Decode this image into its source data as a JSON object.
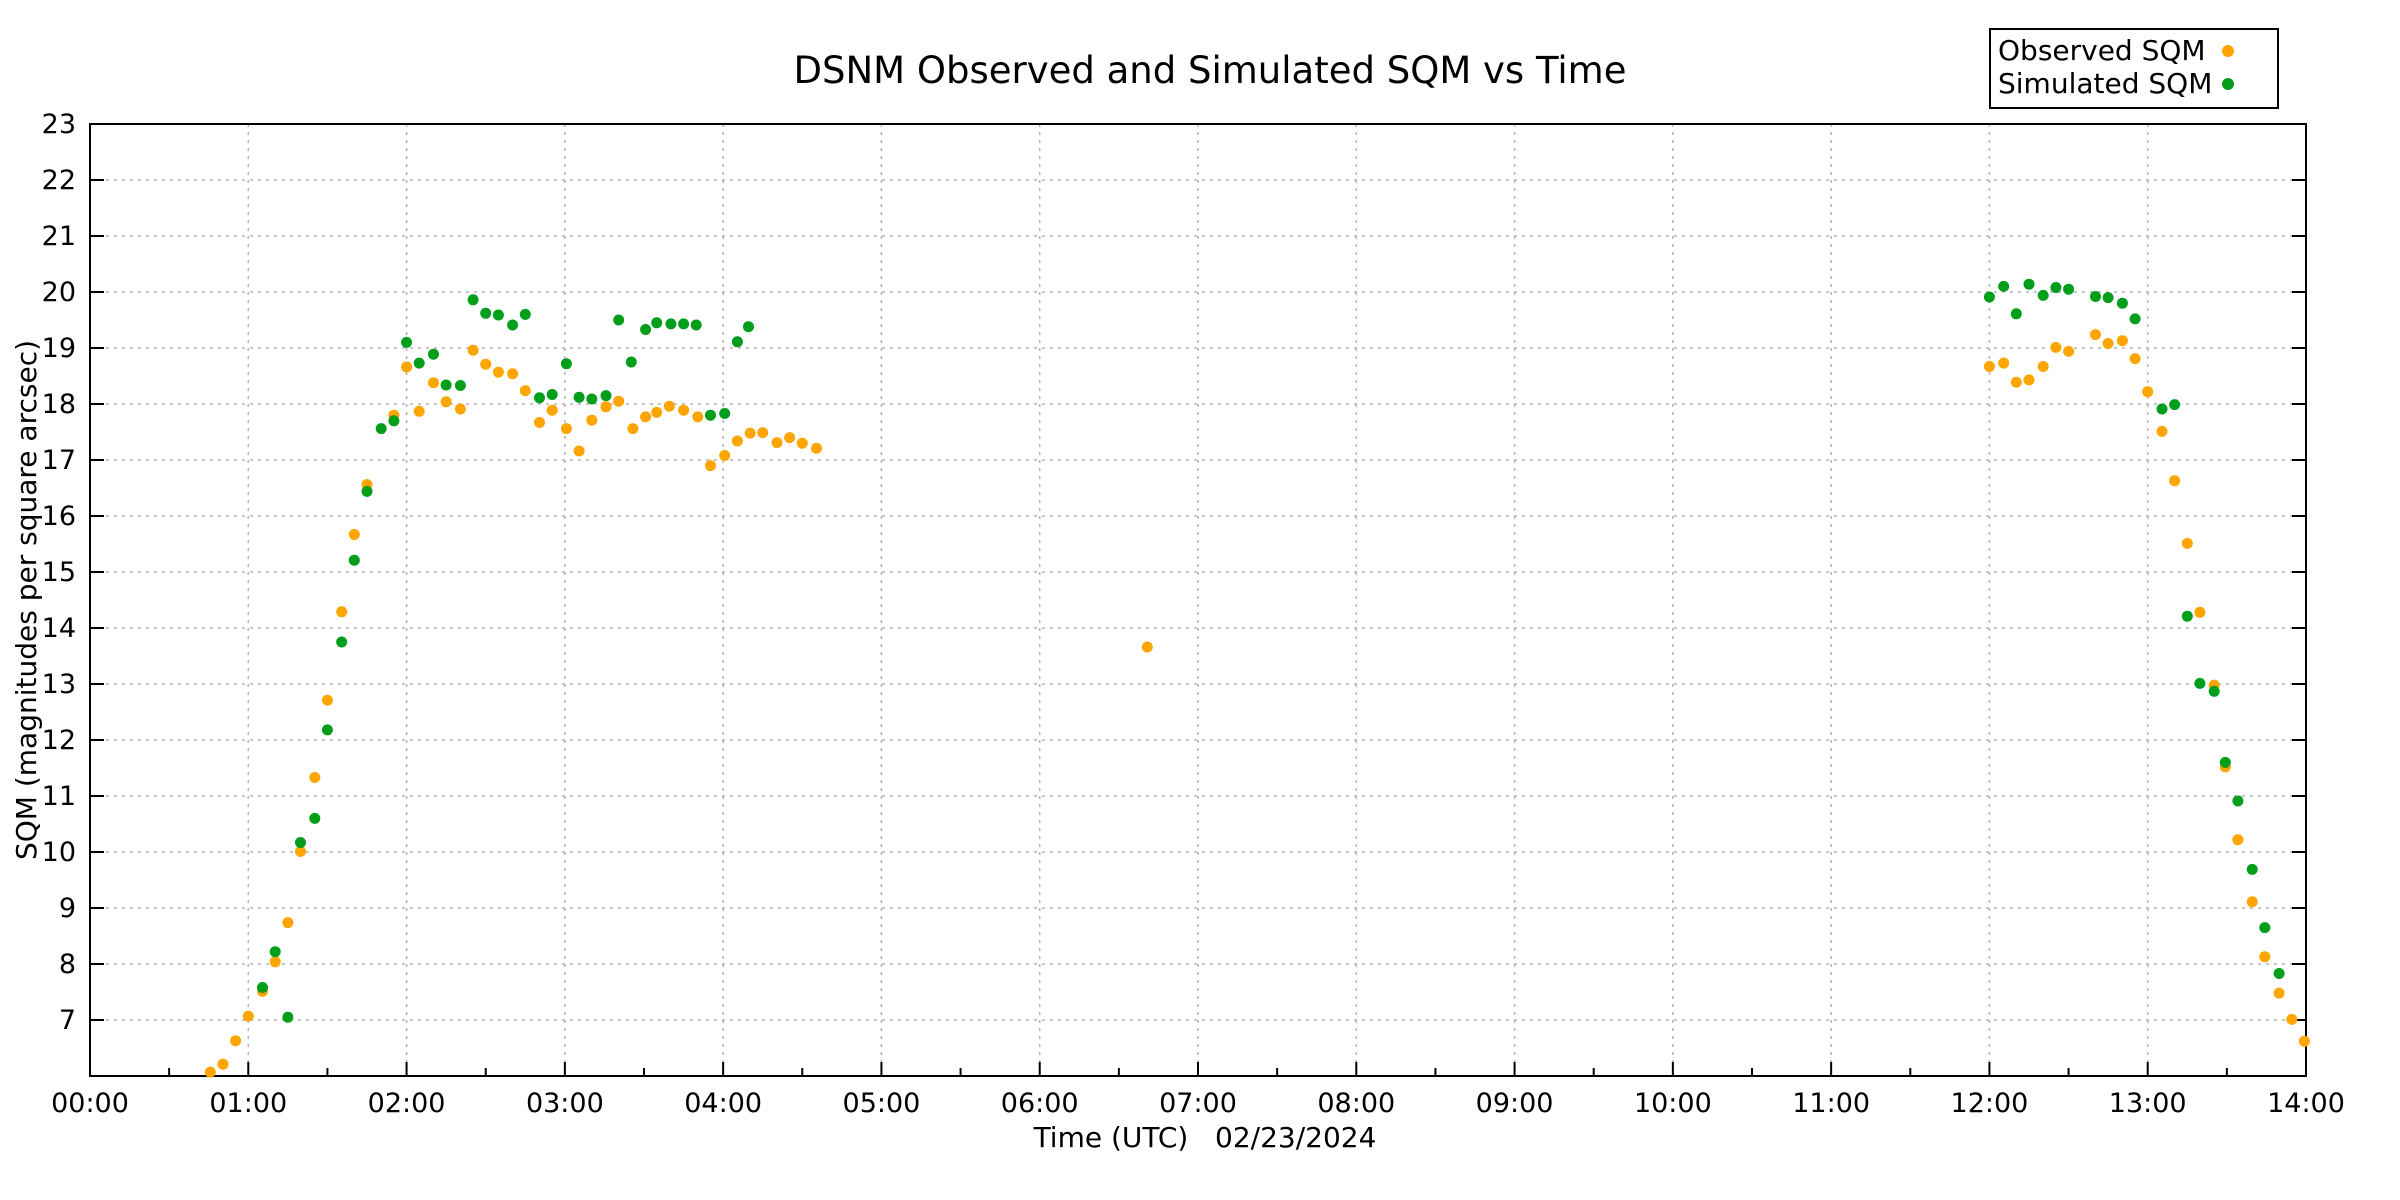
{
  "chart": {
    "accent_color": "#0d9e6e",
    "grid_color": "#b3b3b3",
    "border_color": "#000000"
  },
  "chart_data": {
    "type": "scatter",
    "title": "DSNM Observed and Simulated SQM vs Time",
    "xlabel": "Time (UTC)   02/23/2024",
    "ylabel": "SQM (magnitudes per square arcsec)",
    "x_date": "02/23/2024",
    "xlim_hours": [
      0,
      14
    ],
    "ylim": [
      6,
      23
    ],
    "grid": true,
    "legend_position": "top-right",
    "x_tick_labels": [
      "00:00",
      "01:00",
      "02:00",
      "03:00",
      "04:00",
      "05:00",
      "06:00",
      "07:00",
      "08:00",
      "09:00",
      "10:00",
      "11:00",
      "12:00",
      "13:00",
      "14:00"
    ],
    "y_ticks": [
      7,
      8,
      9,
      10,
      11,
      12,
      13,
      14,
      15,
      16,
      17,
      18,
      19,
      20,
      21,
      22,
      23
    ],
    "series": [
      {
        "name": "Observed SQM",
        "color": "#ffa500",
        "points": [
          [
            0.76,
            6.07
          ],
          [
            0.84,
            6.21
          ],
          [
            0.92,
            6.63
          ],
          [
            1.0,
            7.07
          ],
          [
            1.09,
            7.51
          ],
          [
            1.17,
            8.04
          ],
          [
            1.25,
            8.74
          ],
          [
            1.33,
            10.01
          ],
          [
            1.42,
            11.33
          ],
          [
            1.5,
            12.71
          ],
          [
            1.59,
            14.29
          ],
          [
            1.67,
            15.67
          ],
          [
            1.75,
            16.56
          ],
          [
            1.92,
            17.8
          ],
          [
            2.0,
            18.66
          ],
          [
            2.08,
            17.87
          ],
          [
            2.17,
            18.38
          ],
          [
            2.25,
            18.04
          ],
          [
            2.34,
            17.91
          ],
          [
            2.42,
            18.96
          ],
          [
            2.5,
            18.71
          ],
          [
            2.58,
            18.57
          ],
          [
            2.67,
            18.54
          ],
          [
            2.75,
            18.24
          ],
          [
            2.84,
            17.67
          ],
          [
            2.92,
            17.89
          ],
          [
            3.01,
            17.56
          ],
          [
            3.09,
            17.16
          ],
          [
            3.17,
            17.71
          ],
          [
            3.26,
            17.95
          ],
          [
            3.34,
            18.05
          ],
          [
            3.43,
            17.56
          ],
          [
            3.51,
            17.77
          ],
          [
            3.58,
            17.85
          ],
          [
            3.66,
            17.96
          ],
          [
            3.75,
            17.89
          ],
          [
            3.84,
            17.77
          ],
          [
            3.92,
            16.9
          ],
          [
            4.01,
            17.08
          ],
          [
            4.09,
            17.34
          ],
          [
            4.17,
            17.48
          ],
          [
            4.25,
            17.49
          ],
          [
            4.34,
            17.31
          ],
          [
            4.42,
            17.4
          ],
          [
            4.5,
            17.3
          ],
          [
            4.59,
            17.21
          ],
          [
            6.68,
            13.66
          ],
          [
            12.0,
            18.67
          ],
          [
            12.09,
            18.73
          ],
          [
            12.17,
            18.39
          ],
          [
            12.25,
            18.43
          ],
          [
            12.34,
            18.67
          ],
          [
            12.42,
            19.01
          ],
          [
            12.5,
            18.94
          ],
          [
            12.67,
            19.24
          ],
          [
            12.75,
            19.08
          ],
          [
            12.84,
            19.13
          ],
          [
            12.92,
            18.81
          ],
          [
            13.0,
            18.22
          ],
          [
            13.09,
            17.51
          ],
          [
            13.17,
            16.63
          ],
          [
            13.25,
            15.51
          ],
          [
            13.33,
            14.28
          ],
          [
            13.42,
            12.98
          ],
          [
            13.49,
            11.52
          ],
          [
            13.57,
            10.22
          ],
          [
            13.66,
            9.11
          ],
          [
            13.74,
            8.13
          ],
          [
            13.83,
            7.48
          ],
          [
            13.91,
            7.01
          ],
          [
            13.99,
            6.62
          ]
        ]
      },
      {
        "name": "Simulated SQM",
        "color": "#009e1b",
        "points": [
          [
            1.09,
            7.58
          ],
          [
            1.17,
            8.22
          ],
          [
            1.25,
            7.05
          ],
          [
            1.33,
            10.17
          ],
          [
            1.42,
            10.6
          ],
          [
            1.5,
            12.18
          ],
          [
            1.59,
            13.75
          ],
          [
            1.67,
            15.21
          ],
          [
            1.75,
            16.44
          ],
          [
            1.84,
            17.56
          ],
          [
            1.92,
            17.7
          ],
          [
            2.0,
            19.1
          ],
          [
            2.08,
            18.73
          ],
          [
            2.17,
            18.89
          ],
          [
            2.25,
            18.34
          ],
          [
            2.34,
            18.33
          ],
          [
            2.42,
            19.86
          ],
          [
            2.5,
            19.62
          ],
          [
            2.58,
            19.59
          ],
          [
            2.67,
            19.41
          ],
          [
            2.75,
            19.6
          ],
          [
            2.84,
            18.11
          ],
          [
            2.92,
            18.17
          ],
          [
            3.01,
            18.72
          ],
          [
            3.09,
            18.12
          ],
          [
            3.17,
            18.09
          ],
          [
            3.26,
            18.15
          ],
          [
            3.34,
            19.5
          ],
          [
            3.42,
            18.75
          ],
          [
            3.51,
            19.33
          ],
          [
            3.58,
            19.45
          ],
          [
            3.67,
            19.43
          ],
          [
            3.75,
            19.43
          ],
          [
            3.83,
            19.41
          ],
          [
            3.92,
            17.8
          ],
          [
            4.01,
            17.83
          ],
          [
            4.09,
            19.11
          ],
          [
            4.16,
            19.38
          ],
          [
            12.0,
            19.91
          ],
          [
            12.09,
            20.1
          ],
          [
            12.17,
            19.61
          ],
          [
            12.25,
            20.14
          ],
          [
            12.34,
            19.94
          ],
          [
            12.42,
            20.08
          ],
          [
            12.5,
            20.05
          ],
          [
            12.67,
            19.92
          ],
          [
            12.75,
            19.9
          ],
          [
            12.84,
            19.8
          ],
          [
            12.92,
            19.52
          ],
          [
            13.09,
            17.91
          ],
          [
            13.17,
            17.99
          ],
          [
            13.25,
            14.21
          ],
          [
            13.33,
            13.01
          ],
          [
            13.42,
            12.87
          ],
          [
            13.49,
            11.6
          ],
          [
            13.57,
            10.91
          ],
          [
            13.66,
            9.69
          ],
          [
            13.74,
            8.65
          ],
          [
            13.83,
            7.83
          ]
        ]
      }
    ]
  }
}
